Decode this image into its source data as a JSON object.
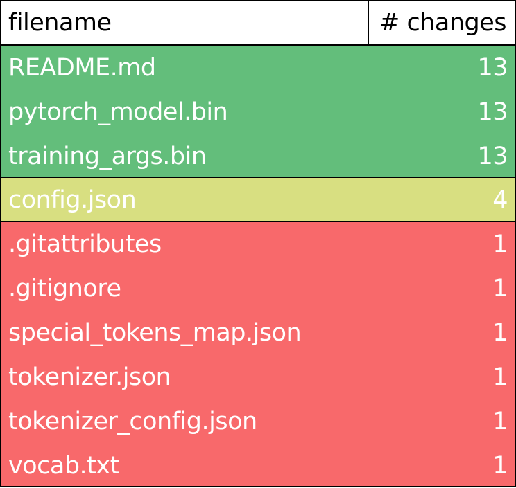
{
  "header": {
    "filename_label": "filename",
    "changes_label": "# changes"
  },
  "groups": [
    {
      "color": "#63be7b",
      "rows": [
        {
          "filename": "README.md",
          "changes": "13"
        },
        {
          "filename": "pytorch_model.bin",
          "changes": "13"
        },
        {
          "filename": "training_args.bin",
          "changes": "13"
        }
      ]
    },
    {
      "color": "#d8df81",
      "rows": [
        {
          "filename": "config.json",
          "changes": "4"
        }
      ]
    },
    {
      "color": "#f8696b",
      "rows": [
        {
          "filename": ".gitattributes",
          "changes": "1"
        },
        {
          "filename": ".gitignore",
          "changes": "1"
        },
        {
          "filename": "special_tokens_map.json",
          "changes": "1"
        },
        {
          "filename": "tokenizer.json",
          "changes": "1"
        },
        {
          "filename": "tokenizer_config.json",
          "changes": "1"
        },
        {
          "filename": "vocab.txt",
          "changes": "1"
        }
      ]
    }
  ]
}
